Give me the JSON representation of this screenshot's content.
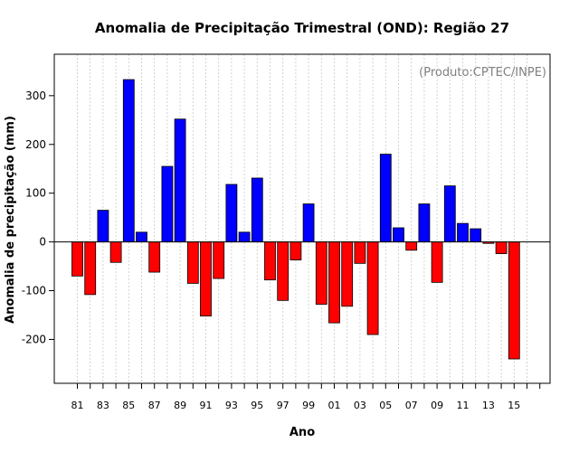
{
  "chart_data": {
    "type": "bar",
    "title": "Anomalia de Precipitação Trimestral (OND): Região 27",
    "xlabel": "Ano",
    "ylabel": "Anomalia de precipitação (mm)",
    "credit": "(Produto:CPTEC/INPE)",
    "ylim": [
      -290,
      385
    ],
    "yticks": [
      -200,
      -100,
      0,
      100,
      200,
      300
    ],
    "categories": [
      "81",
      "82",
      "83",
      "84",
      "85",
      "86",
      "87",
      "88",
      "89",
      "90",
      "91",
      "92",
      "93",
      "94",
      "95",
      "96",
      "97",
      "98",
      "99",
      "00",
      "01",
      "02",
      "03",
      "04",
      "05",
      "06",
      "07",
      "08",
      "09",
      "10",
      "11",
      "12",
      "13",
      "14",
      "15"
    ],
    "xtick_labels": [
      "81",
      "83",
      "85",
      "87",
      "89",
      "91",
      "93",
      "95",
      "97",
      "99",
      "01",
      "03",
      "05",
      "07",
      "09",
      "11",
      "13",
      "15"
    ],
    "values": [
      -70,
      -108,
      65,
      -42,
      333,
      20,
      -62,
      155,
      252,
      -85,
      -152,
      -75,
      118,
      20,
      131,
      -78,
      -120,
      -37,
      78,
      -128,
      -166,
      -132,
      -44,
      -190,
      180,
      29,
      -17,
      78,
      -83,
      115,
      38,
      27,
      -3,
      -24,
      -240
    ],
    "grid": true,
    "colors": {
      "positive": "#0000ff",
      "negative": "#ff0000",
      "grid": "#c8c8c8",
      "credit": "#808080"
    }
  }
}
